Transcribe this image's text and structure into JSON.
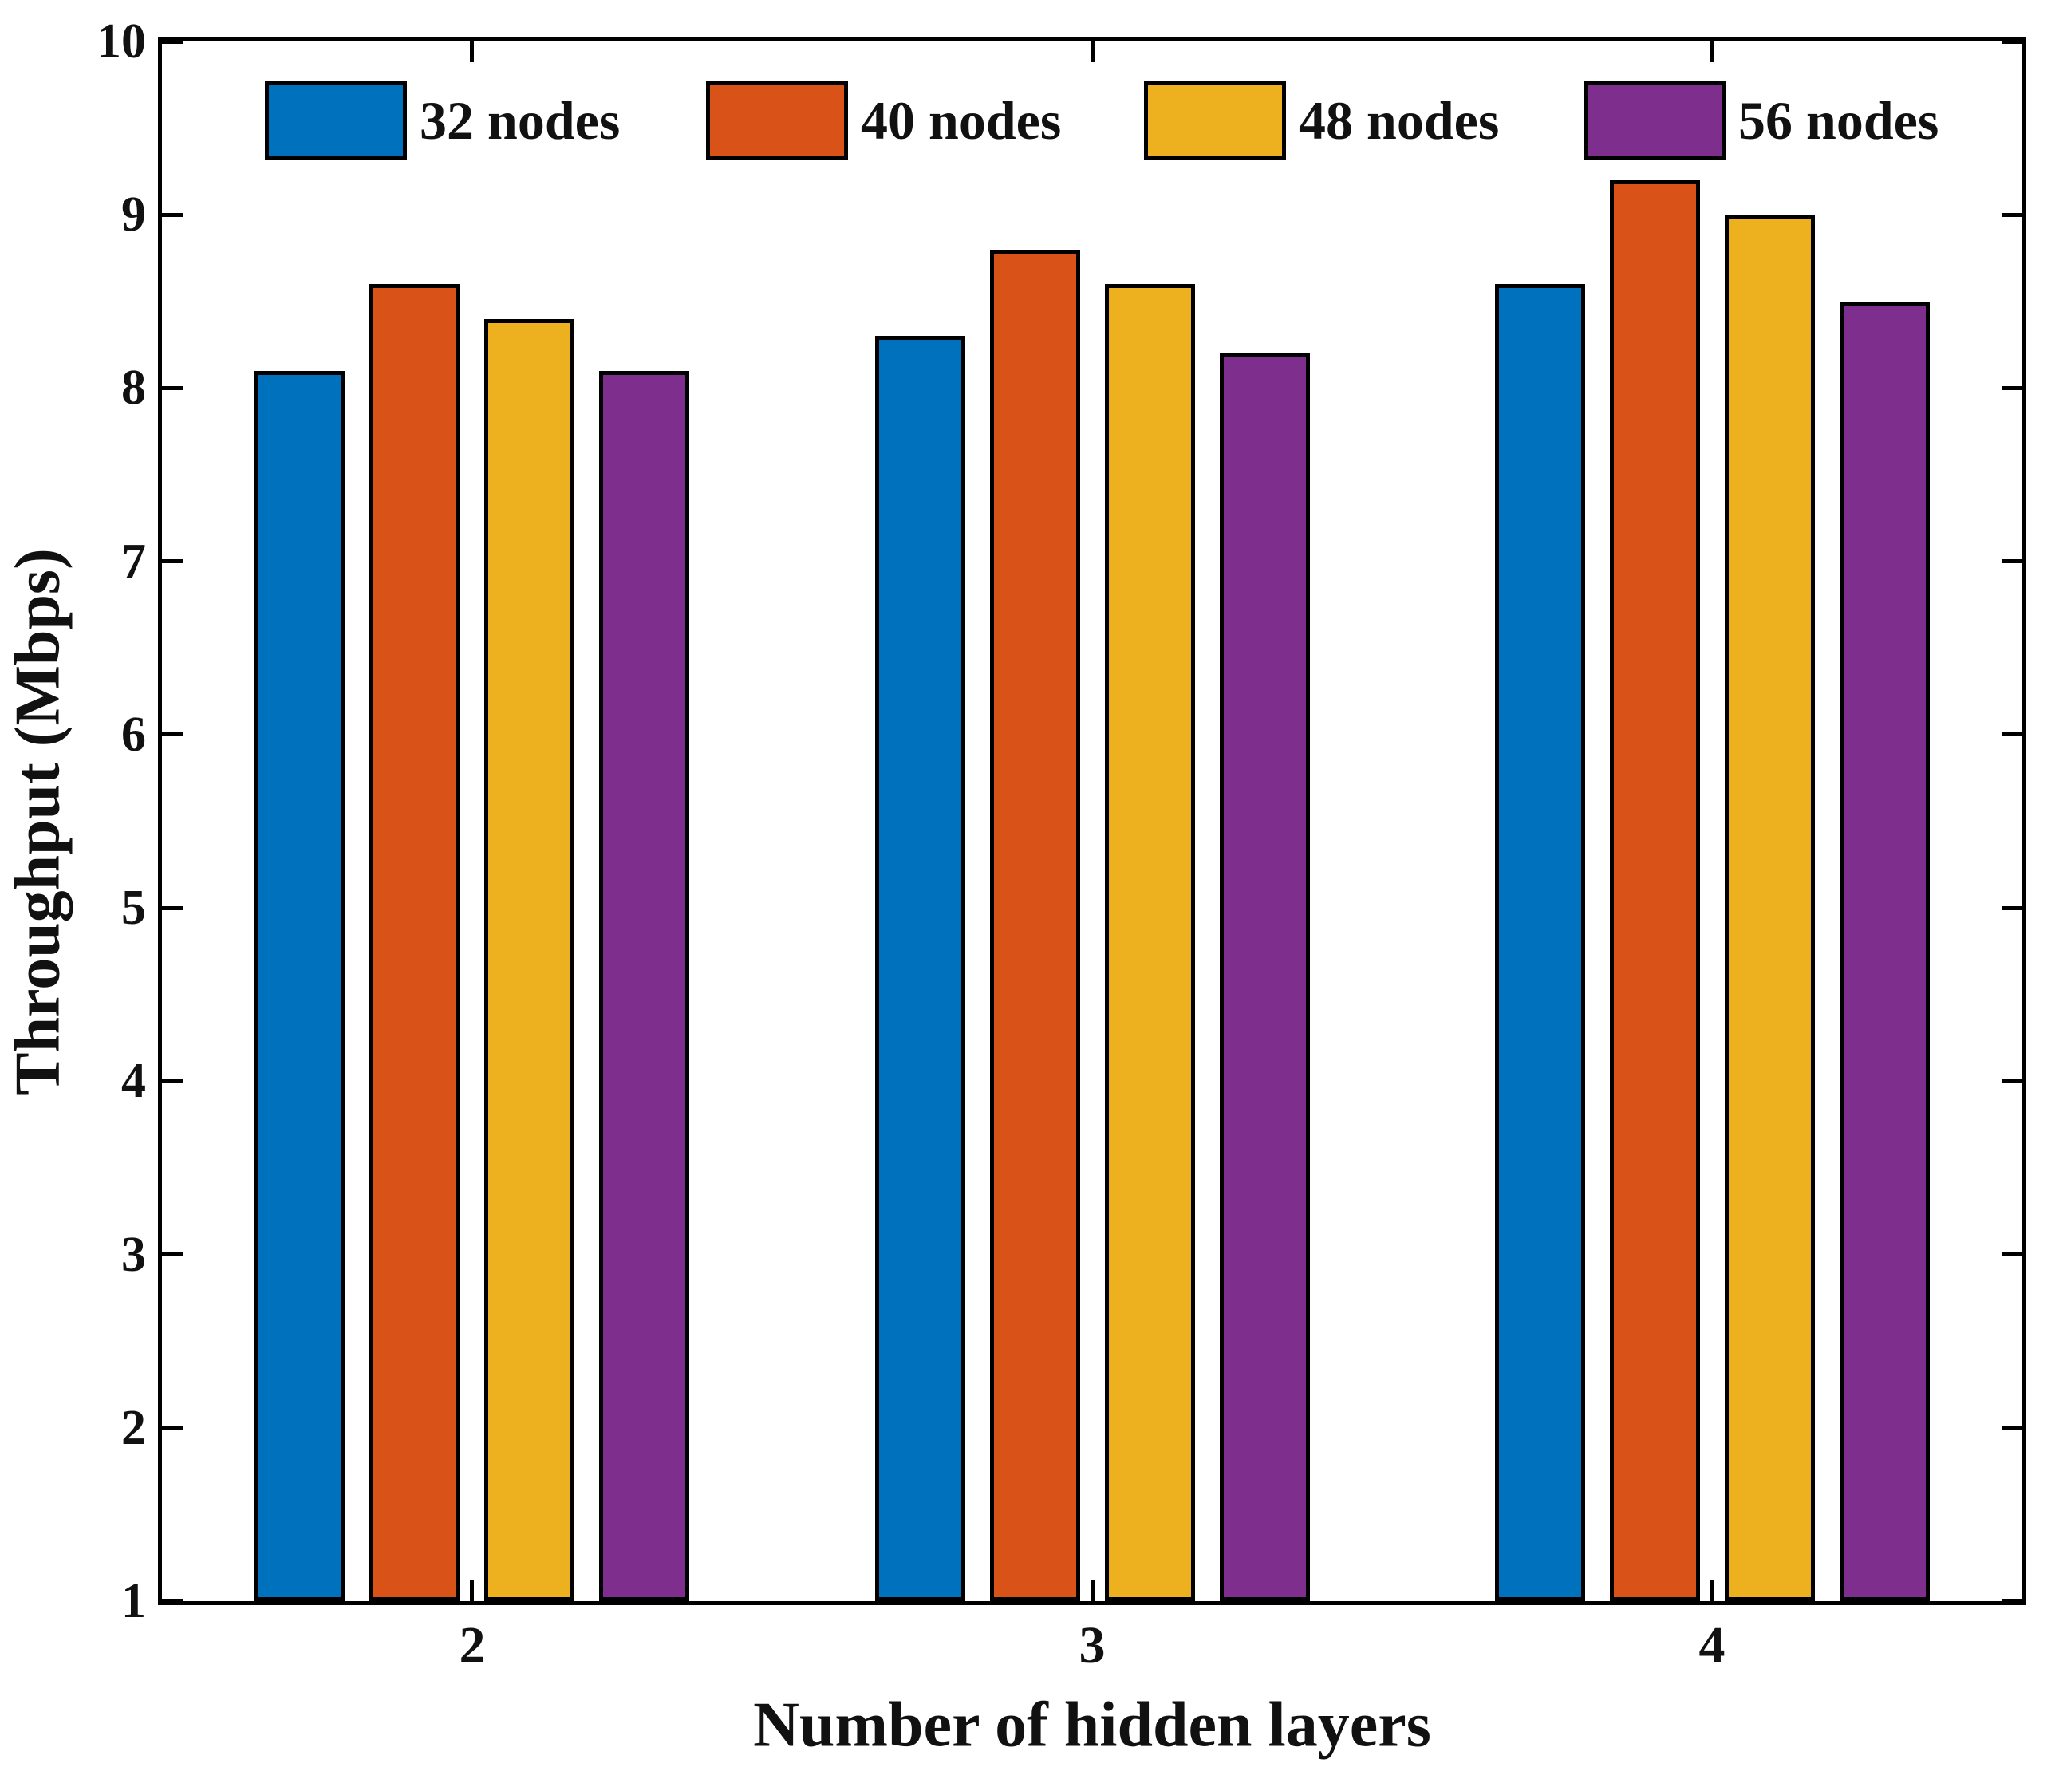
{
  "chart_data": {
    "type": "bar",
    "title": "",
    "xlabel": "Number of hidden layers",
    "ylabel": "Throughput (Mbps)",
    "categories": [
      "2",
      "3",
      "4"
    ],
    "series": [
      {
        "name": "32 nodes",
        "color": "#0072BD",
        "values": [
          8.1,
          8.3,
          8.6
        ]
      },
      {
        "name": "40 nodes",
        "color": "#D95319",
        "values": [
          8.6,
          8.8,
          9.2
        ]
      },
      {
        "name": "48 nodes",
        "color": "#EDB120",
        "values": [
          8.4,
          8.6,
          9.0
        ]
      },
      {
        "name": "56 nodes",
        "color": "#7E2F8E",
        "values": [
          8.1,
          8.2,
          8.5
        ]
      }
    ],
    "ylim": [
      1,
      10
    ],
    "yticks": [
      1,
      2,
      3,
      4,
      5,
      6,
      7,
      8,
      9,
      10
    ],
    "bar_baseline": 1,
    "grid": false,
    "legend_position": "top-inside-horizontal",
    "bar_edge_color": "#000000",
    "axis_color": "#000000"
  }
}
